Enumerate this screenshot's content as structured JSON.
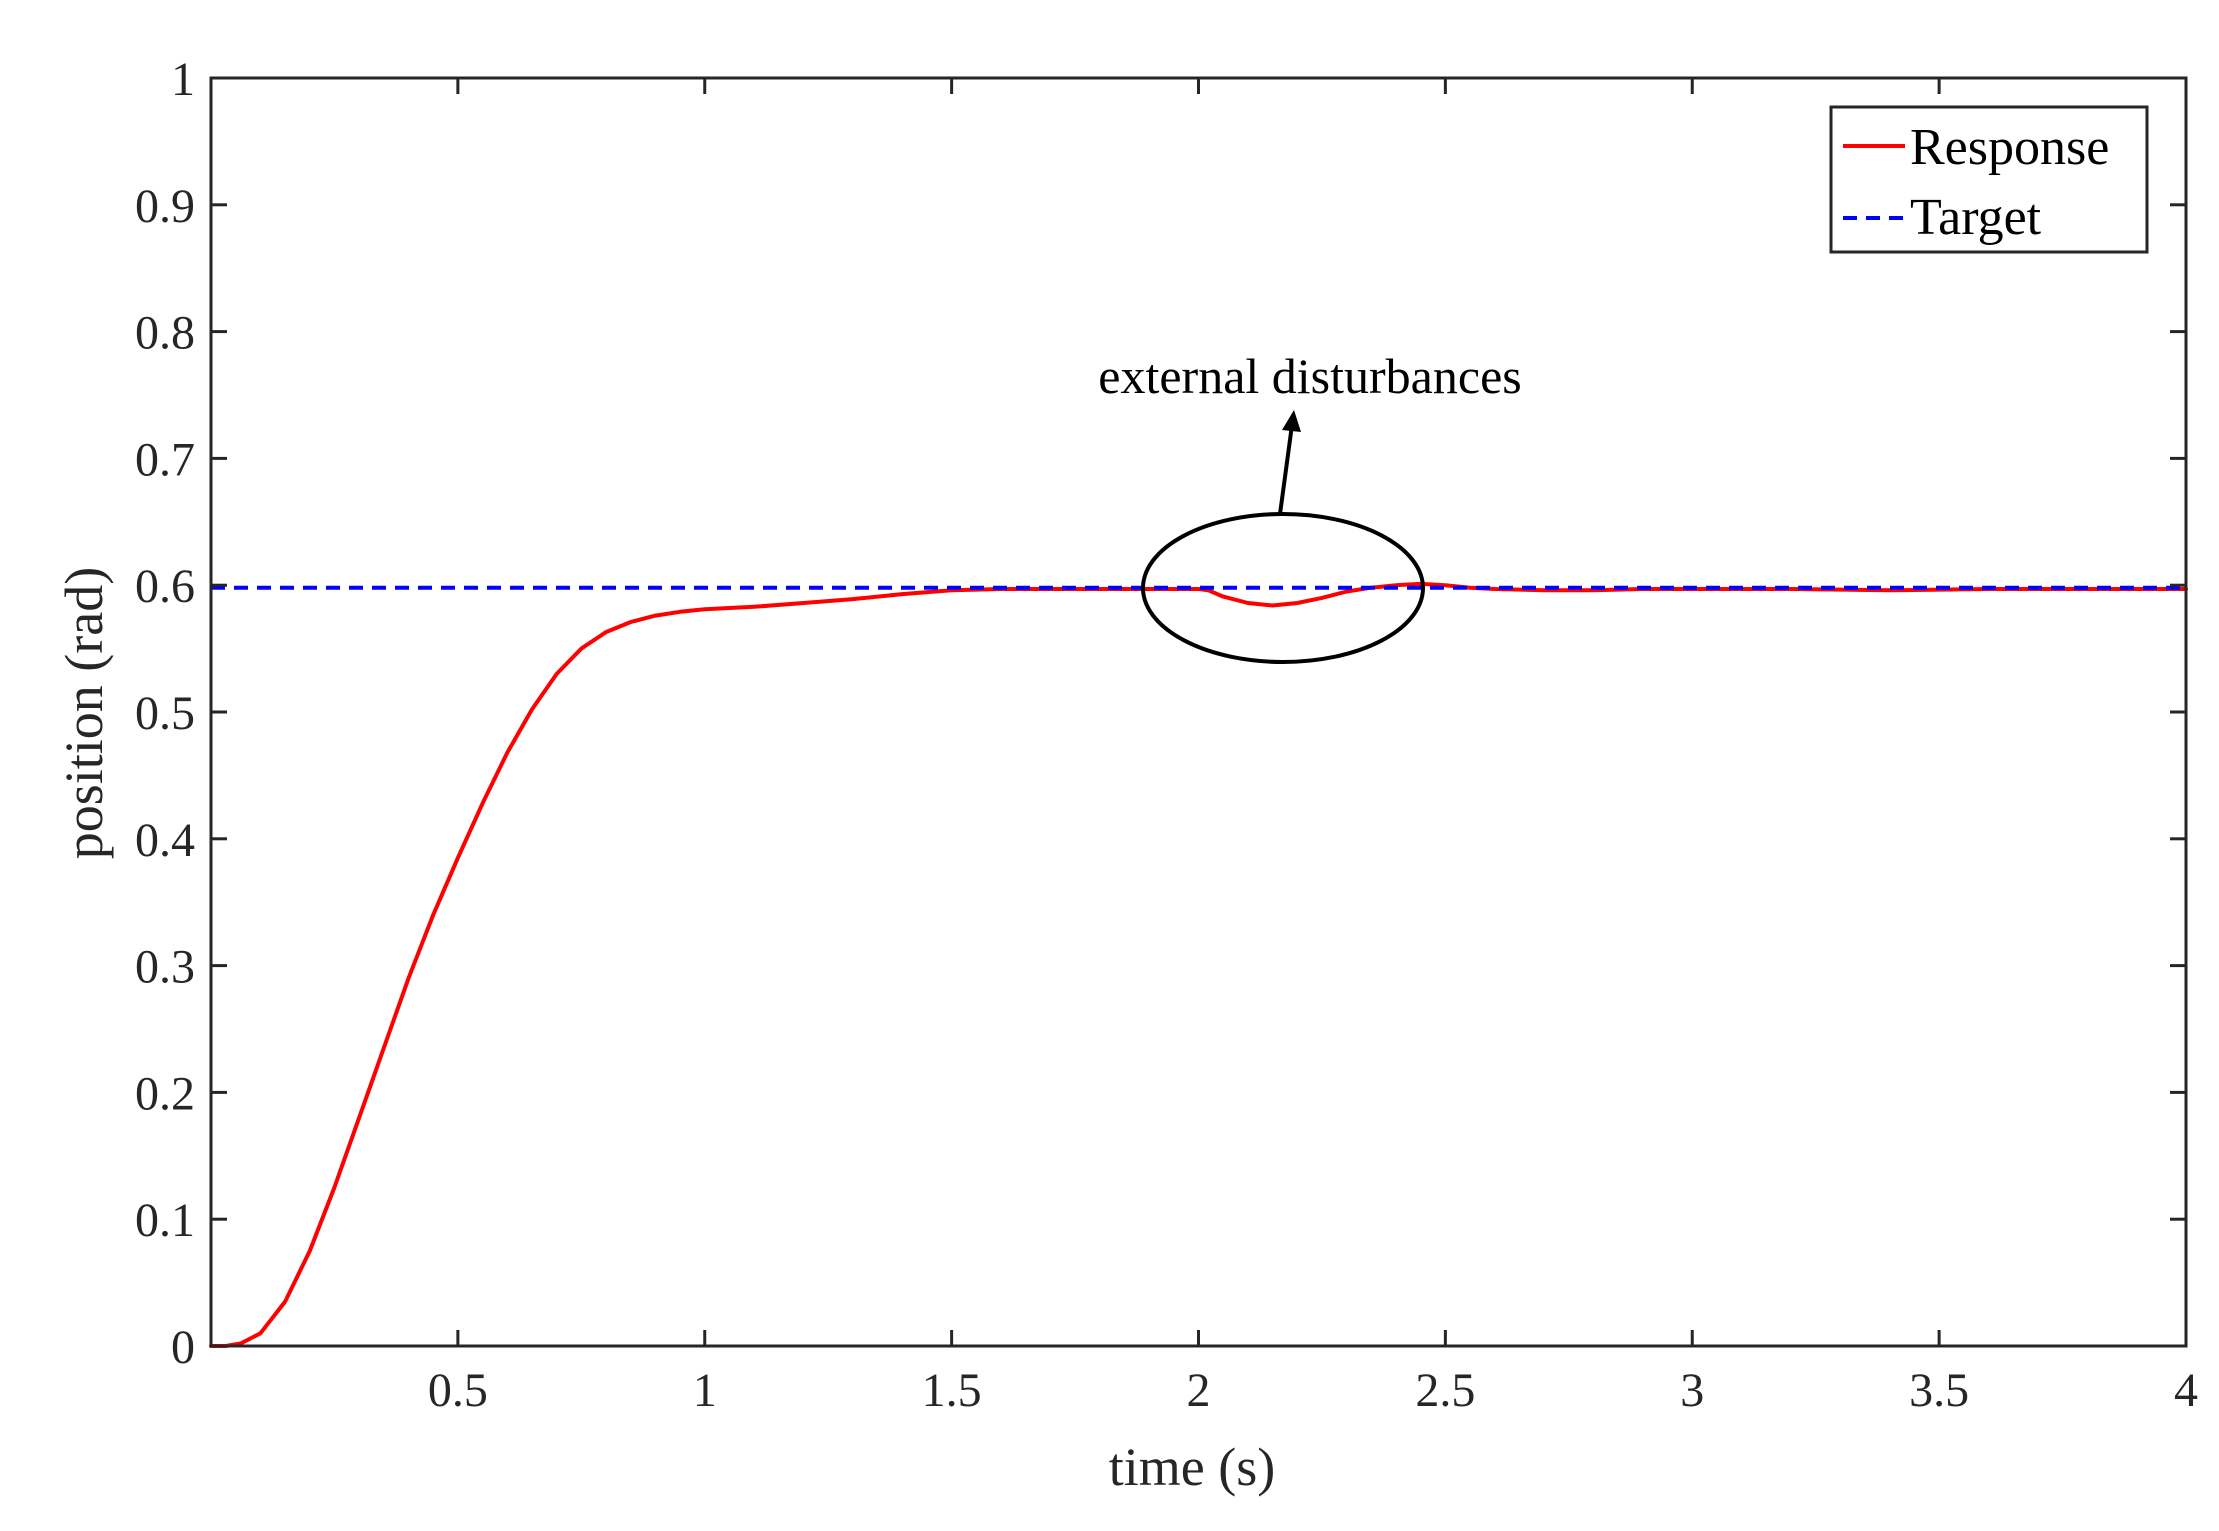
{
  "chart_data": {
    "type": "line",
    "title": "",
    "xlabel": "time (s)",
    "ylabel": "position (rad)",
    "xlim": [
      0,
      4
    ],
    "ylim": [
      0,
      1
    ],
    "xticks": [
      0.5,
      1,
      1.5,
      2,
      2.5,
      3,
      3.5,
      4
    ],
    "xtick_labels": [
      "0.5",
      "1",
      "1.5",
      "2",
      "2.5",
      "3",
      "3.5",
      "4"
    ],
    "yticks": [
      0,
      0.1,
      0.2,
      0.3,
      0.4,
      0.5,
      0.6,
      0.7,
      0.8,
      0.9,
      1
    ],
    "ytick_labels": [
      "0",
      "0.1",
      "0.2",
      "0.3",
      "0.4",
      "0.5",
      "0.6",
      "0.7",
      "0.8",
      "0.9",
      "1"
    ],
    "grid": false,
    "legend_position": "top-right",
    "series": [
      {
        "name": "Response",
        "color": "#ff0000",
        "style": "solid",
        "x": [
          0,
          0.03,
          0.06,
          0.1,
          0.15,
          0.2,
          0.25,
          0.3,
          0.35,
          0.4,
          0.45,
          0.5,
          0.55,
          0.6,
          0.65,
          0.7,
          0.75,
          0.8,
          0.85,
          0.9,
          0.95,
          1.0,
          1.05,
          1.1,
          1.2,
          1.3,
          1.4,
          1.5,
          1.6,
          1.7,
          1.8,
          1.9,
          2.0,
          2.02,
          2.05,
          2.1,
          2.15,
          2.2,
          2.25,
          2.3,
          2.35,
          2.4,
          2.45,
          2.5,
          2.55,
          2.6,
          2.7,
          2.8,
          2.9,
          3.0,
          3.2,
          3.4,
          3.6,
          3.8,
          4.0
        ],
        "values": [
          0,
          0.0,
          0.002,
          0.01,
          0.035,
          0.075,
          0.125,
          0.18,
          0.235,
          0.29,
          0.34,
          0.385,
          0.428,
          0.468,
          0.502,
          0.53,
          0.55,
          0.563,
          0.571,
          0.576,
          0.579,
          0.581,
          0.582,
          0.583,
          0.586,
          0.589,
          0.593,
          0.596,
          0.597,
          0.597,
          0.597,
          0.597,
          0.597,
          0.596,
          0.591,
          0.586,
          0.584,
          0.586,
          0.59,
          0.595,
          0.598,
          0.6,
          0.601,
          0.6,
          0.598,
          0.597,
          0.596,
          0.596,
          0.597,
          0.597,
          0.597,
          0.596,
          0.597,
          0.597,
          0.597
        ]
      },
      {
        "name": "Target",
        "color": "#0000ff",
        "style": "dashed",
        "x": [
          0,
          4
        ],
        "values": [
          0.598,
          0.598
        ]
      }
    ],
    "annotations": [
      {
        "text": "external disturbances",
        "target_x": 2.18,
        "target_y": 0.59
      }
    ]
  }
}
